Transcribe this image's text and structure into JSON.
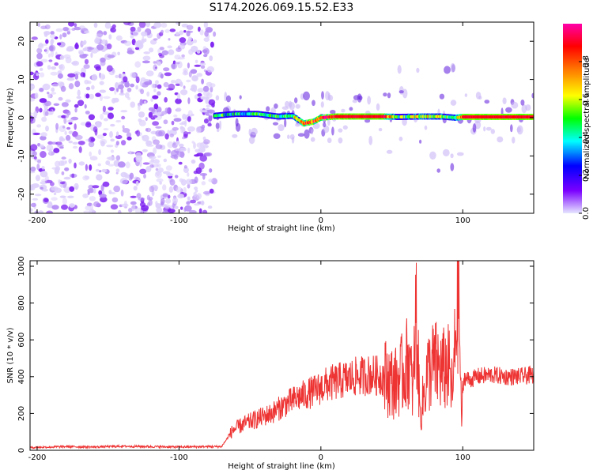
{
  "chart_data": [
    {
      "type": "heatmap",
      "title": "S174.2026.069.15.52.E33",
      "xlabel": "Height of straight line (km)",
      "ylabel": "Frequency (Hz)",
      "xlim": [
        -205,
        150
      ],
      "ylim": [
        -25,
        25
      ],
      "xticks": [
        -200,
        -100,
        0,
        100
      ],
      "yticks": [
        -20,
        -10,
        0,
        10,
        20
      ],
      "colorbar": {
        "label": "Normalized spectral amplitude",
        "range": [
          0.0,
          1.0
        ],
        "ticks": [
          0.0,
          0.2,
          0.4,
          0.6,
          0.8
        ],
        "colormap": [
          "#e6e6ff",
          "#7a00ff",
          "#0000ff",
          "#00ffff",
          "#00ff00",
          "#ffff00",
          "#ff8000",
          "#ff0000",
          "#ff00aa"
        ]
      },
      "noise_region": {
        "x": [
          -205,
          -75
        ],
        "freq": [
          -25,
          25
        ],
        "amplitude": 0.1
      },
      "signal_track": [
        {
          "x": -75,
          "freq": 0.5,
          "amp": 0.45
        },
        {
          "x": -60,
          "freq": 1.0,
          "amp": 0.4
        },
        {
          "x": -45,
          "freq": 1.0,
          "amp": 0.45
        },
        {
          "x": -30,
          "freq": 0.3,
          "amp": 0.5
        },
        {
          "x": -20,
          "freq": 0.5,
          "amp": 0.55
        },
        {
          "x": -12,
          "freq": -1.5,
          "amp": 0.8
        },
        {
          "x": -5,
          "freq": -1.0,
          "amp": 0.8
        },
        {
          "x": 0,
          "freq": 0.0,
          "amp": 0.85
        },
        {
          "x": 10,
          "freq": 0.3,
          "amp": 0.9
        },
        {
          "x": 45,
          "freq": 0.3,
          "amp": 0.9
        },
        {
          "x": 55,
          "freq": 0.2,
          "amp": 0.45
        },
        {
          "x": 70,
          "freq": 0.3,
          "amp": 0.6
        },
        {
          "x": 85,
          "freq": 0.3,
          "amp": 0.55
        },
        {
          "x": 95,
          "freq": 0.0,
          "amp": 0.5
        },
        {
          "x": 100,
          "freq": 0.2,
          "amp": 0.9
        },
        {
          "x": 150,
          "freq": 0.2,
          "amp": 0.9
        }
      ]
    },
    {
      "type": "line",
      "xlabel": "Height of straight line (km)",
      "ylabel": "SNR (10 * v/v)",
      "xlim": [
        -205,
        150
      ],
      "ylim": [
        0,
        1030
      ],
      "xticks": [
        -200,
        -100,
        0,
        100
      ],
      "yticks": [
        0,
        200,
        400,
        600,
        800,
        1000
      ],
      "color": "#ee3333",
      "series": [
        {
          "name": "SNR",
          "x": [
            -205,
            -180,
            -160,
            -140,
            -120,
            -100,
            -80,
            -70,
            -62,
            -55,
            -45,
            -35,
            -25,
            -15,
            -5,
            5,
            15,
            25,
            35,
            45,
            52,
            58,
            62,
            65,
            67,
            70,
            75,
            80,
            85,
            90,
            93,
            95,
            97,
            99,
            101,
            105,
            110,
            120,
            130,
            140,
            150
          ],
          "values": [
            15,
            20,
            18,
            22,
            20,
            18,
            20,
            20,
            110,
            140,
            170,
            200,
            250,
            290,
            320,
            360,
            380,
            400,
            410,
            400,
            360,
            420,
            500,
            300,
            760,
            180,
            420,
            470,
            430,
            450,
            300,
            650,
            950,
            170,
            400,
            380,
            400,
            410,
            400,
            400,
            410
          ]
        }
      ]
    }
  ]
}
